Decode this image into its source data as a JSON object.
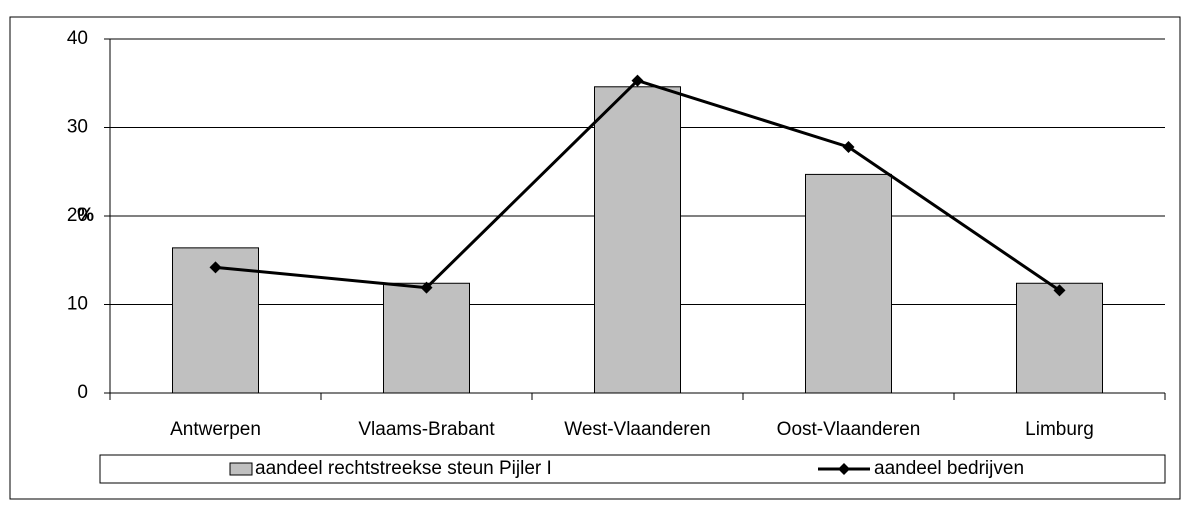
{
  "chart_data": {
    "type": "bar_line",
    "y_label": "%",
    "categories": [
      "Antwerpen",
      "Vlaams-Brabant",
      "West-Vlaanderen",
      "Oost-Vlaanderen",
      "Limburg"
    ],
    "series": [
      {
        "name": "aandeel rechtstreekse steun Pijler I",
        "type": "bar",
        "color": "#c0c0c0",
        "values": [
          16.4,
          12.4,
          34.6,
          24.7,
          12.4
        ]
      },
      {
        "name": "aandeel bedrijven",
        "type": "line",
        "color": "#000000",
        "values": [
          14.2,
          11.9,
          35.3,
          27.8,
          11.6
        ]
      }
    ],
    "ylim": [
      0,
      40
    ],
    "yticks": [
      0,
      10,
      20,
      30,
      40
    ],
    "grid": true,
    "legend": "bottom"
  }
}
